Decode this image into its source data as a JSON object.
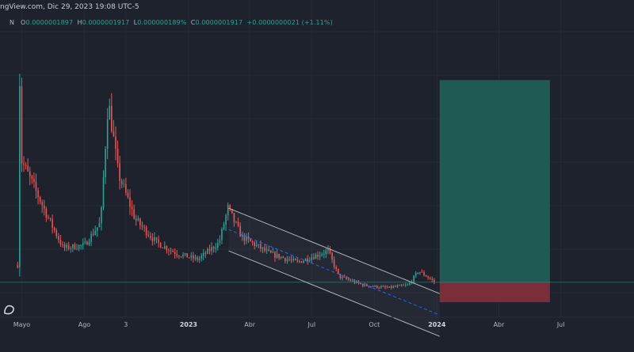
{
  "header": {
    "text": "ngView.com, Dic 29, 2023 19:08 UTC-5"
  },
  "ohlc": {
    "prefix": "N",
    "o": "0.0000001897",
    "h": "0.0000001917",
    "l": "0.000000189%",
    "c": "0.0000001917",
    "change": "+0.0000000021 (+1.11%)"
  },
  "colors": {
    "background": "#1e222d",
    "bull": "#26a69a",
    "bear": "#ef5350",
    "profit_zone": "#1f5a54",
    "loss_zone": "#7a2e3a",
    "channel": "#b2b5be",
    "midline": "#2962ff"
  },
  "chart_data": {
    "type": "candlestick",
    "x_axis": {
      "tick_labels": [
        "Mayo",
        "Ago",
        "3",
        "2023",
        "Abr",
        "Jul",
        "Oct",
        "2024",
        "Abr",
        "Jul"
      ],
      "bold_labels": [
        "2023",
        "2024"
      ],
      "range": [
        "2022-04-20",
        "2024-08-10"
      ]
    },
    "price_trend": [
      {
        "date": "2022-04-25",
        "level": 0.18
      },
      {
        "date": "2022-04-27",
        "level": 0.97
      },
      {
        "date": "2022-04-30",
        "level": 0.55
      },
      {
        "date": "2022-05-20",
        "level": 0.45
      },
      {
        "date": "2022-06-10",
        "level": 0.34
      },
      {
        "date": "2022-07-01",
        "level": 0.24
      },
      {
        "date": "2022-08-01",
        "level": 0.25
      },
      {
        "date": "2022-08-25",
        "level": 0.33
      },
      {
        "date": "2022-09-05",
        "level": 0.76
      },
      {
        "date": "2022-09-20",
        "level": 0.5
      },
      {
        "date": "2022-10-15",
        "level": 0.34
      },
      {
        "date": "2022-11-15",
        "level": 0.26
      },
      {
        "date": "2022-12-15",
        "level": 0.22
      },
      {
        "date": "2023-01-15",
        "level": 0.2
      },
      {
        "date": "2023-02-15",
        "level": 0.26
      },
      {
        "date": "2023-02-28",
        "level": 0.38
      },
      {
        "date": "2023-03-20",
        "level": 0.28
      },
      {
        "date": "2023-05-01",
        "level": 0.22
      },
      {
        "date": "2023-06-10",
        "level": 0.19
      },
      {
        "date": "2023-07-25",
        "level": 0.23
      },
      {
        "date": "2023-08-10",
        "level": 0.14
      },
      {
        "date": "2023-09-15",
        "level": 0.11
      },
      {
        "date": "2023-10-20",
        "level": 0.1
      },
      {
        "date": "2023-11-20",
        "level": 0.11
      },
      {
        "date": "2023-12-05",
        "level": 0.16
      },
      {
        "date": "2023-12-29",
        "level": 0.12
      }
    ],
    "annotations": {
      "channel": {
        "start": {
          "date": "2023-03-01",
          "level": 0.38
        },
        "end": {
          "date": "2024-01-05",
          "level": 0.08
        },
        "width_levels": 0.15
      },
      "position": {
        "start": "2024-01-05",
        "end": "2024-06-15",
        "entry_level": 0.12,
        "target_level": 0.83,
        "stop_level": 0.05
      },
      "horizontal_line_level": 0.12
    }
  }
}
